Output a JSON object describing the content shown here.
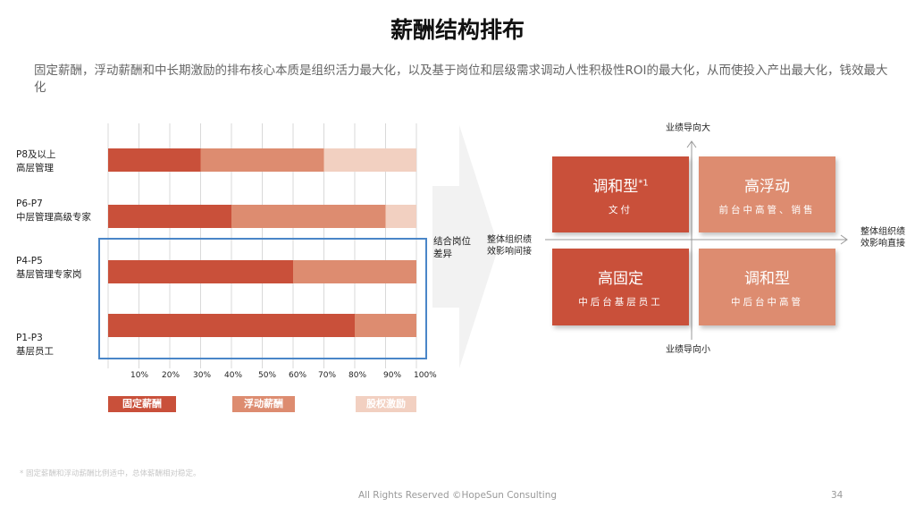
{
  "title": "薪酬结构排布",
  "subtitle": "固定薪酬，浮动薪酬和中长期激励的排布核心本质是组织活力最大化，以及基于岗位和层级需求调动人性积极性ROI的最大化，从而使投入产出最大化，钱效最大化",
  "colors": {
    "fixed": "#c9503a",
    "floating": "#dd8c70",
    "equity": "#f2d0c1",
    "quad_dark": "#c9503a",
    "quad_light": "#dd8c70",
    "box": "#4a86c8"
  },
  "chart_data": {
    "type": "bar",
    "orientation": "horizontal",
    "stacked": true,
    "categories": [
      {
        "code": "P8及以上",
        "desc": "高层管理"
      },
      {
        "code": "P6-P7",
        "desc": "中层管理高级专家"
      },
      {
        "code": "P4-P5",
        "desc": "基层管理专家岗"
      },
      {
        "code": "P1-P3",
        "desc": "基层员工"
      }
    ],
    "series": [
      {
        "name": "固定薪酬",
        "values": [
          30,
          40,
          60,
          80
        ]
      },
      {
        "name": "浮动薪酬",
        "values": [
          40,
          50,
          40,
          20
        ]
      },
      {
        "name": "股权激励",
        "values": [
          30,
          10,
          0,
          0
        ]
      }
    ],
    "x_ticks": [
      "10%",
      "20%",
      "30%",
      "40%",
      "50%",
      "60%",
      "70%",
      "80%",
      "90%",
      "100%"
    ],
    "xlim": [
      0,
      100
    ],
    "legend": [
      "固定薪酬",
      "浮动薪酬",
      "股权激励"
    ]
  },
  "annotation": "结合岗位\n差异",
  "matrix": {
    "axis_top": "业绩导向大",
    "axis_bottom": "业绩导向小",
    "axis_left": "整体组织绩\n效影响间接",
    "axis_right": "整体组织绩\n效影响直接",
    "quadrants": {
      "top_left": {
        "title": "调和型",
        "sup": "*1",
        "sub": "文付"
      },
      "top_right": {
        "title": "高浮动",
        "sub": "前台中高管、销售"
      },
      "bottom_left": {
        "title": "高固定",
        "sub": "中后台基层员工"
      },
      "bottom_right": {
        "title": "调和型",
        "sub": "中后台中高管"
      }
    }
  },
  "footnote": "* 固定薪酬和浮动薪酬比例适中，总体薪酬相对稳定。",
  "copyright": "All Rights Reserved ©HopeSun Consulting",
  "page_number": "34"
}
